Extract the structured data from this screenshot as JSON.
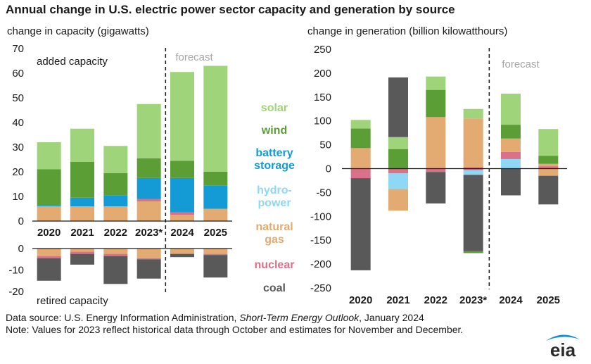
{
  "title": "Annual change in U.S. electric power sector capacity and generation by source",
  "footer": {
    "source_prefix": "Data source: U.S. Energy Information Administration, ",
    "source_title": "Short-Term Energy Outlook",
    "source_suffix": ", January 2024",
    "note": "Note: Values for 2023 reflect historical data through October and estimates for November and December."
  },
  "logo_text": "eia",
  "colors": {
    "solar": "#9fd47a",
    "wind": "#5a9e35",
    "battery": "#149bd6",
    "hydro": "#8fd8f5",
    "gas": "#e3aa72",
    "nuclear": "#d9718a",
    "coal": "#595959"
  },
  "legend": [
    {
      "key": "solar",
      "lines": [
        "solar"
      ]
    },
    {
      "key": "wind",
      "lines": [
        "wind"
      ]
    },
    {
      "key": "battery",
      "lines": [
        "battery",
        "storage"
      ]
    },
    {
      "key": "hydro",
      "lines": [
        "hydro-",
        "power"
      ]
    },
    {
      "key": "gas",
      "lines": [
        "natural",
        "gas"
      ]
    },
    {
      "key": "nuclear",
      "lines": [
        "nuclear"
      ]
    },
    {
      "key": "coal",
      "lines": [
        "coal"
      ]
    }
  ],
  "chart_data": [
    {
      "type": "bar",
      "stacked": true,
      "subtitle": "change in capacity (gigawatts)",
      "annotation_top": "added capacity",
      "annotation_bottom": "retired capacity",
      "forecast_label": "forecast",
      "categories": [
        "2020",
        "2021",
        "2022",
        "2023*",
        "2024",
        "2025"
      ],
      "ylim_added": [
        0,
        70
      ],
      "ylim_retired": [
        -20,
        0
      ],
      "yticks_added": [
        0,
        10,
        20,
        30,
        40,
        50,
        60,
        70
      ],
      "yticks_retired": [
        -20,
        -10,
        0
      ],
      "added_series": [
        {
          "name": "natural gas",
          "key": "gas",
          "values": [
            6,
            6,
            6,
            8,
            2.5,
            5
          ]
        },
        {
          "name": "nuclear",
          "key": "nuclear",
          "values": [
            0,
            0,
            0,
            1,
            1,
            0
          ]
        },
        {
          "name": "battery storage",
          "key": "battery",
          "values": [
            0.5,
            3.5,
            4.5,
            8.5,
            14,
            9.5
          ]
        },
        {
          "name": "wind",
          "key": "wind",
          "values": [
            14.5,
            14.5,
            9,
            8,
            7,
            5.5
          ]
        },
        {
          "name": "solar",
          "key": "solar",
          "values": [
            11,
            13.5,
            11,
            22,
            36,
            43
          ]
        }
      ],
      "retired_series": [
        {
          "name": "natural gas",
          "key": "gas",
          "values": [
            -3.5,
            -1.5,
            -2.5,
            -4.5,
            -2.5,
            -2.5
          ]
        },
        {
          "name": "nuclear",
          "key": "nuclear",
          "values": [
            -1,
            -1,
            -1,
            -0.5,
            0,
            -0.5
          ]
        },
        {
          "name": "coal",
          "key": "coal",
          "values": [
            -10.5,
            -5,
            -13,
            -9,
            -1.5,
            -10.5
          ]
        }
      ]
    },
    {
      "type": "bar",
      "stacked": true,
      "subtitle": "change in generation (billion kilowatthours)",
      "forecast_label": "forecast",
      "categories": [
        "2020",
        "2021",
        "2022",
        "2023*",
        "2024",
        "2025"
      ],
      "ylim": [
        -250,
        250
      ],
      "yticks": [
        -250,
        -200,
        -150,
        -100,
        -50,
        0,
        50,
        100,
        150,
        200,
        250
      ],
      "positive_series": [
        {
          "name": "hydropower",
          "key": "hydro",
          "values": [
            0,
            0,
            0,
            0,
            20,
            0
          ]
        },
        {
          "name": "nuclear",
          "key": "nuclear",
          "values": [
            0,
            0,
            0,
            3,
            15,
            5
          ]
        },
        {
          "name": "natural gas",
          "key": "gas",
          "values": [
            43,
            0,
            108,
            102,
            28,
            5
          ]
        },
        {
          "name": "wind",
          "key": "wind",
          "values": [
            41,
            41,
            57,
            0,
            29,
            17
          ]
        },
        {
          "name": "solar",
          "key": "solar",
          "values": [
            18,
            25,
            28,
            20,
            65,
            56
          ]
        },
        {
          "name": "coal",
          "key": "coal",
          "values": [
            0,
            125,
            0,
            0,
            0,
            0
          ]
        }
      ],
      "negative_series": [
        {
          "name": "nuclear",
          "key": "nuclear",
          "values": [
            -20,
            -10,
            -7,
            -3,
            0,
            0
          ]
        },
        {
          "name": "hydropower",
          "key": "hydro",
          "values": [
            0,
            -33,
            0,
            -10,
            0,
            0
          ]
        },
        {
          "name": "natural gas",
          "key": "gas",
          "values": [
            0,
            -45,
            0,
            0,
            0,
            -15
          ]
        },
        {
          "name": "coal",
          "key": "coal",
          "values": [
            -193,
            0,
            -66,
            -160,
            -56,
            -60
          ]
        },
        {
          "name": "wind",
          "key": "wind",
          "values": [
            0,
            0,
            0,
            -4,
            0,
            0
          ]
        }
      ]
    }
  ]
}
